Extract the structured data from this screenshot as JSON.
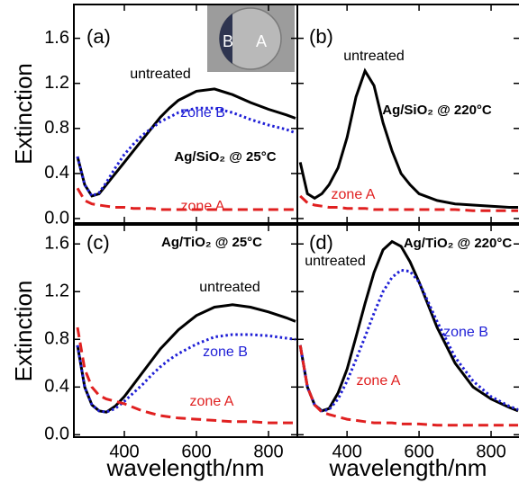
{
  "chart_data": [
    {
      "type": "line",
      "panel_label": "(a)",
      "annotation": "Ag/SiO₂ @ 25°C",
      "ylabel": "Extinction",
      "inset_labels": [
        "B",
        "A"
      ],
      "x": [
        270,
        290,
        310,
        330,
        350,
        375,
        400,
        425,
        450,
        475,
        500,
        525,
        550,
        575,
        600,
        650,
        700,
        750,
        800,
        850,
        875
      ],
      "series": [
        {
          "name": "untreated",
          "color": "#000000",
          "style": "solid",
          "values": [
            0.55,
            0.3,
            0.2,
            0.22,
            0.3,
            0.4,
            0.5,
            0.6,
            0.7,
            0.8,
            0.9,
            0.98,
            1.05,
            1.09,
            1.13,
            1.15,
            1.1,
            1.03,
            0.97,
            0.92,
            0.89
          ]
        },
        {
          "name": "zone B",
          "color": "#1f1fd6",
          "style": "dotted",
          "values": [
            0.55,
            0.3,
            0.2,
            0.23,
            0.32,
            0.45,
            0.57,
            0.66,
            0.74,
            0.8,
            0.86,
            0.9,
            0.94,
            0.96,
            0.98,
            0.98,
            0.94,
            0.88,
            0.83,
            0.79,
            0.76
          ]
        },
        {
          "name": "zone A",
          "color": "#e02020",
          "style": "dashed",
          "values": [
            0.27,
            0.16,
            0.13,
            0.12,
            0.11,
            0.1,
            0.1,
            0.09,
            0.09,
            0.09,
            0.08,
            0.08,
            0.08,
            0.08,
            0.08,
            0.08,
            0.08,
            0.08,
            0.08,
            0.08,
            0.08
          ]
        }
      ],
      "xlim": [
        260,
        880
      ],
      "ylim": [
        -0.04,
        1.9
      ],
      "xticks": [
        400,
        600,
        800
      ],
      "yticks": [
        {
          "value": 0,
          "label": "0.0"
        },
        0.4,
        0.8,
        1.2,
        1.6
      ],
      "xticklabels": false,
      "yticklabels": true
    },
    {
      "type": "line",
      "panel_label": "(b)",
      "annotation": "Ag/SiO₂ @ 220°C",
      "x": [
        270,
        290,
        310,
        330,
        350,
        375,
        400,
        425,
        450,
        475,
        500,
        525,
        550,
        575,
        600,
        650,
        700,
        750,
        800,
        850,
        875
      ],
      "series": [
        {
          "name": "untreated",
          "color": "#000000",
          "style": "solid",
          "values": [
            0.5,
            0.22,
            0.18,
            0.22,
            0.3,
            0.45,
            0.72,
            1.08,
            1.31,
            1.18,
            0.85,
            0.6,
            0.4,
            0.3,
            0.22,
            0.16,
            0.13,
            0.12,
            0.11,
            0.1,
            0.1
          ]
        },
        {
          "name": "zone A",
          "color": "#e02020",
          "style": "dashed",
          "values": [
            0.2,
            0.14,
            0.12,
            0.11,
            0.1,
            0.1,
            0.09,
            0.09,
            0.09,
            0.08,
            0.08,
            0.08,
            0.08,
            0.08,
            0.08,
            0.08,
            0.08,
            0.07,
            0.07,
            0.07,
            0.07
          ]
        }
      ],
      "xlim": [
        262,
        880
      ],
      "ylim": [
        -0.04,
        1.9
      ],
      "xticks": [
        400,
        600,
        800
      ],
      "yticks": [
        {
          "value": 0,
          "label": "0.0"
        },
        0.4,
        0.8,
        1.2,
        1.6
      ],
      "xticklabels": false,
      "yticklabels": false
    },
    {
      "type": "line",
      "panel_label": "(c)",
      "annotation": "Ag/TiO₂ @ 25°C",
      "ylabel": "Extinction",
      "xlabel": "wavelength/nm",
      "x": [
        270,
        290,
        310,
        330,
        350,
        375,
        400,
        425,
        450,
        475,
        500,
        525,
        550,
        575,
        600,
        650,
        700,
        750,
        800,
        850,
        875
      ],
      "series": [
        {
          "name": "untreated",
          "color": "#000000",
          "style": "solid",
          "values": [
            0.75,
            0.4,
            0.25,
            0.2,
            0.19,
            0.24,
            0.32,
            0.42,
            0.52,
            0.62,
            0.72,
            0.8,
            0.88,
            0.94,
            1.0,
            1.07,
            1.09,
            1.07,
            1.03,
            0.98,
            0.95
          ]
        },
        {
          "name": "zone B",
          "color": "#1f1fd6",
          "style": "dotted",
          "values": [
            0.75,
            0.4,
            0.25,
            0.2,
            0.19,
            0.22,
            0.28,
            0.35,
            0.42,
            0.5,
            0.57,
            0.63,
            0.68,
            0.72,
            0.76,
            0.82,
            0.84,
            0.84,
            0.83,
            0.81,
            0.8
          ]
        },
        {
          "name": "zone A",
          "color": "#e02020",
          "style": "dashed",
          "values": [
            0.9,
            0.55,
            0.4,
            0.33,
            0.3,
            0.28,
            0.26,
            0.23,
            0.2,
            0.18,
            0.16,
            0.15,
            0.14,
            0.135,
            0.13,
            0.12,
            0.11,
            0.11,
            0.1,
            0.1,
            0.1
          ]
        }
      ],
      "xlim": [
        260,
        880
      ],
      "ylim": [
        -0.02,
        1.76
      ],
      "xticks": [
        400,
        600,
        800
      ],
      "yticks": [
        {
          "value": 0,
          "label": "0.0"
        },
        0.4,
        0.8,
        1.2,
        1.6
      ],
      "xticklabels": true,
      "yticklabels": true
    },
    {
      "type": "line",
      "panel_label": "(d)",
      "annotation": "Ag/TiO₂ @ 220°C",
      "xlabel": "wavelength/nm",
      "x": [
        270,
        290,
        310,
        330,
        350,
        375,
        400,
        425,
        450,
        475,
        500,
        525,
        550,
        575,
        600,
        650,
        700,
        750,
        800,
        850,
        875
      ],
      "series": [
        {
          "name": "untreated",
          "color": "#000000",
          "style": "solid",
          "values": [
            0.75,
            0.4,
            0.25,
            0.2,
            0.22,
            0.35,
            0.55,
            0.82,
            1.1,
            1.36,
            1.55,
            1.62,
            1.58,
            1.45,
            1.28,
            0.9,
            0.6,
            0.4,
            0.3,
            0.23,
            0.2
          ]
        },
        {
          "name": "zone B",
          "color": "#1f1fd6",
          "style": "dotted",
          "values": [
            0.75,
            0.4,
            0.25,
            0.2,
            0.21,
            0.3,
            0.45,
            0.63,
            0.82,
            1.02,
            1.2,
            1.32,
            1.38,
            1.37,
            1.28,
            0.95,
            0.65,
            0.45,
            0.32,
            0.24,
            0.21
          ]
        },
        {
          "name": "zone A",
          "color": "#e02020",
          "style": "dashed",
          "values": [
            0.75,
            0.4,
            0.25,
            0.19,
            0.17,
            0.15,
            0.13,
            0.12,
            0.11,
            0.1,
            0.1,
            0.1,
            0.09,
            0.09,
            0.09,
            0.08,
            0.08,
            0.08,
            0.08,
            0.08,
            0.08
          ]
        }
      ],
      "xlim": [
        262,
        880
      ],
      "ylim": [
        -0.02,
        1.76
      ],
      "xticks": [
        400,
        600,
        800
      ],
      "yticks": [
        {
          "value": 0,
          "label": "0.0"
        },
        0.4,
        0.8,
        1.2,
        1.6
      ],
      "xticklabels": true,
      "yticklabels": false
    }
  ]
}
